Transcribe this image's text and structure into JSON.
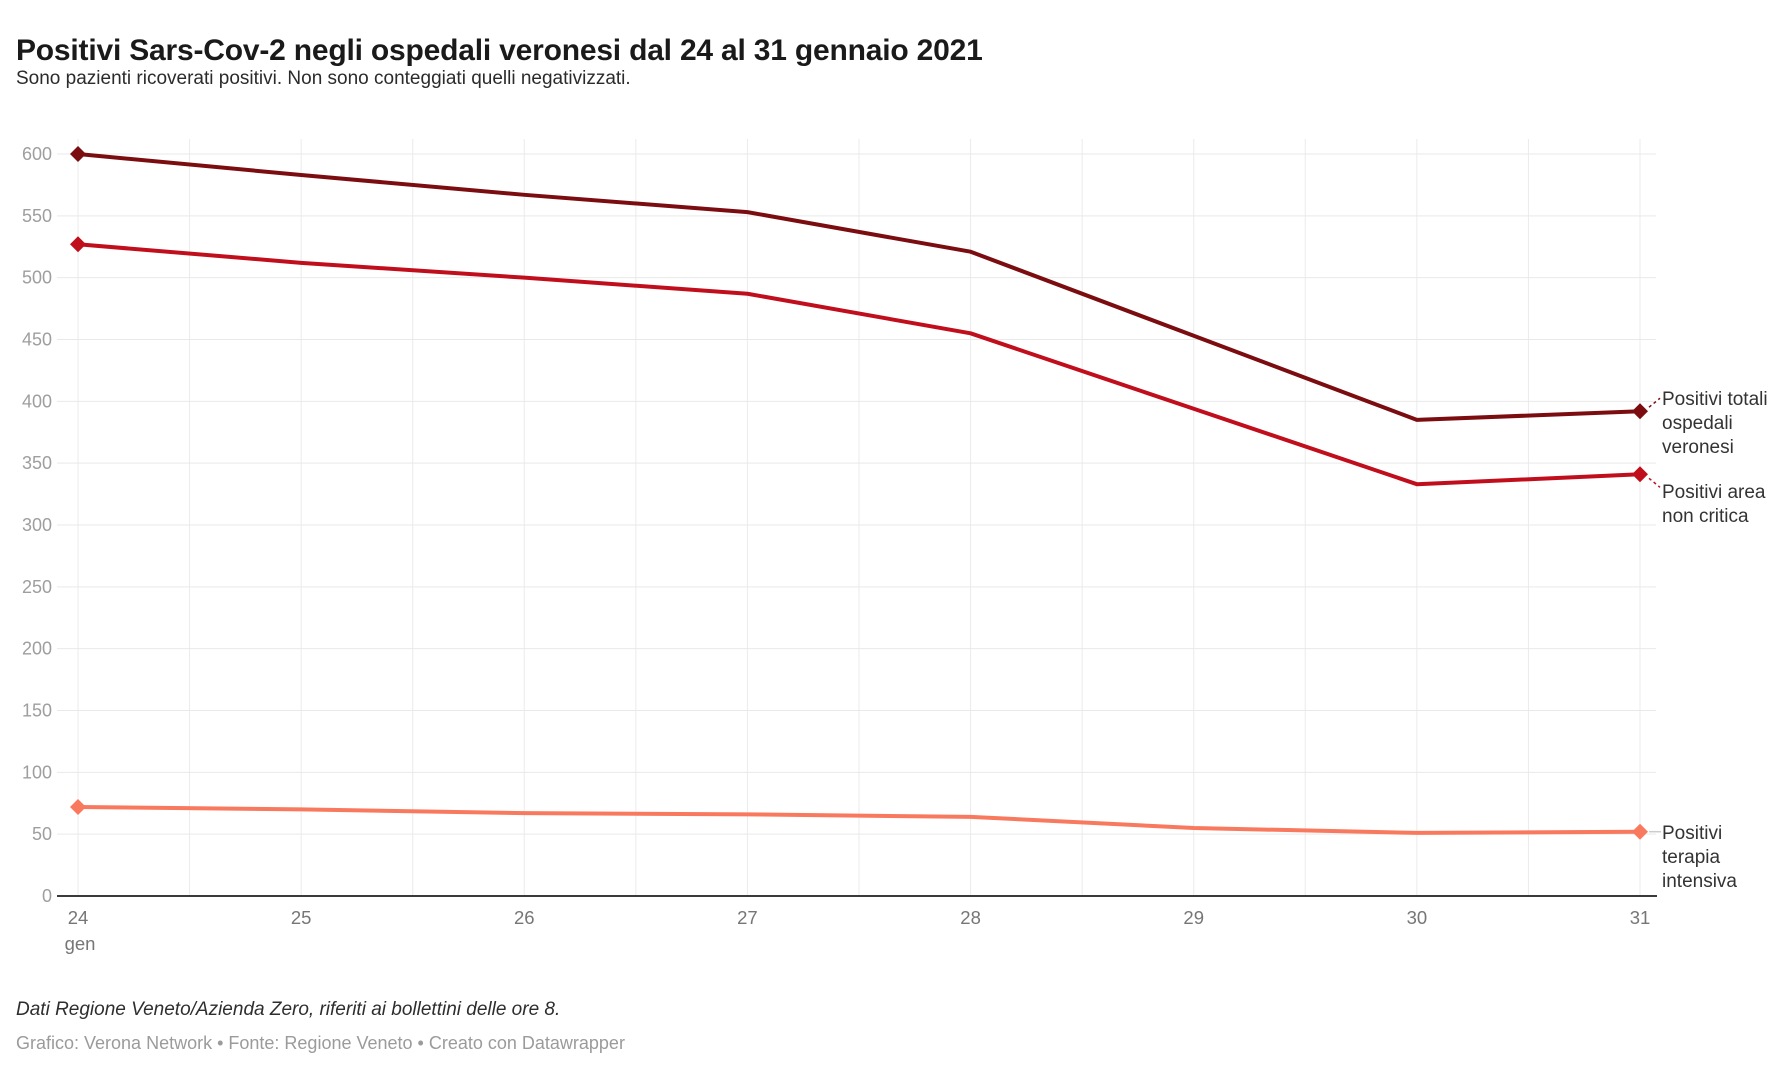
{
  "header": {
    "title": "Positivi Sars-Cov-2 negli ospedali veronesi dal 24 al 31 gennaio 2021",
    "subtitle": "Sono pazienti ricoverati positivi. Non sono conteggiati quelli negativizzati."
  },
  "chart_data": {
    "type": "line",
    "title": "Positivi Sars-Cov-2 negli ospedali veronesi dal 24 al 31 gennaio 2021",
    "x_labels": [
      "24",
      "25",
      "26",
      "27",
      "28",
      "29",
      "30",
      "31"
    ],
    "x_month_label": "gen",
    "y_ticks": [
      0,
      50,
      100,
      150,
      200,
      250,
      300,
      350,
      400,
      450,
      500,
      550,
      600
    ],
    "ylim": [
      0,
      600
    ],
    "grid": "on",
    "legend_position": "right-of-line-ends",
    "marker_shape": "diamond-at-endpoints",
    "series": [
      {
        "name": "Positivi totali ospedali veronesi",
        "color": "#7b0d11",
        "values": [
          600,
          583,
          567,
          553,
          521,
          453,
          385,
          392
        ]
      },
      {
        "name": "Positivi area non critica",
        "color": "#c10e1c",
        "values": [
          527,
          512,
          500,
          487,
          455,
          394,
          333,
          341
        ]
      },
      {
        "name": "Positivi terapia intensiva",
        "color": "#f8795e",
        "values": [
          72,
          70,
          67,
          66,
          64,
          55,
          51,
          52
        ]
      }
    ],
    "axis_colors": {
      "tick_label": "#9e9e9e",
      "x_tick_label": "#767676",
      "gridline": "#e9e9e9",
      "baseline": "#3a3a3a"
    }
  },
  "footer": {
    "note": "Dati Regione Veneto/Azienda Zero, riferiti ai bollettini delle ore 8.",
    "credits": "Grafico: Verona Network • Fonte: Regione Veneto • Creato con Datawrapper"
  }
}
